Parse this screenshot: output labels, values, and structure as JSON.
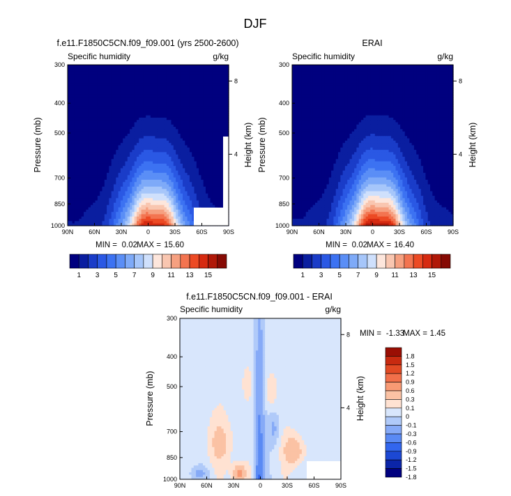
{
  "figure": {
    "title": "DJF"
  },
  "palette": {
    "seq": [
      "#00007f",
      "#0a1ea0",
      "#1a3cc8",
      "#2a58e4",
      "#3c72f2",
      "#5a8ef6",
      "#7eaaf8",
      "#a6c6fa",
      "#cfe0fc",
      "#fde6dc",
      "#f9c6b0",
      "#f6a080",
      "#f37450",
      "#ec4a24",
      "#d62a10",
      "#b01808",
      "#860a04"
    ],
    "div": [
      "#00007f",
      "#0b25a8",
      "#1c48d4",
      "#3266ee",
      "#5a8af4",
      "#86aaf7",
      "#b0caf9",
      "#d8e6fc",
      "#ffe2d2",
      "#fbc2a4",
      "#f89a74",
      "#f2704a",
      "#e24a24",
      "#c82a10",
      "#9a0e04"
    ]
  },
  "chart_data": [
    {
      "type": "heatmap",
      "id": "model",
      "title": "f.e11.F1850C5CN.f09_f09.001 (yrs 2500-2600)",
      "subtitle_left": "Specific humidity",
      "subtitle_right": "g/kg",
      "ylabel": "Pressure (mb)",
      "ylabel_right": "Height (km)",
      "x_ticks": [
        "90N",
        "60N",
        "30N",
        "0",
        "30S",
        "60S",
        "90S"
      ],
      "x_values": [
        90,
        60,
        30,
        0,
        -30,
        -60,
        -90
      ],
      "y_ticks": [
        "300",
        "400",
        "500",
        "700",
        "850",
        "1000"
      ],
      "y_values": [
        300,
        400,
        500,
        700,
        850,
        1000
      ],
      "height_ticks": [
        "8",
        "4"
      ],
      "height_values": [
        8,
        4
      ],
      "min_label": "MIN =",
      "min": "0.02",
      "max_label": "MAX =",
      "max": "15.60",
      "peak": 15.6,
      "colorbar_labels": [
        "1",
        "3",
        "5",
        "7",
        "9",
        "11",
        "13",
        "15"
      ]
    },
    {
      "type": "heatmap",
      "id": "obs",
      "title": "ERAI",
      "subtitle_left": "Specific humidity",
      "subtitle_right": "g/kg",
      "ylabel": "Pressure (mb)",
      "ylabel_right": "Height (km)",
      "x_ticks": [
        "90N",
        "60N",
        "30N",
        "0",
        "30S",
        "60S",
        "90S"
      ],
      "x_values": [
        90,
        60,
        30,
        0,
        -30,
        -60,
        -90
      ],
      "y_ticks": [
        "300",
        "400",
        "500",
        "700",
        "850",
        "1000"
      ],
      "y_values": [
        300,
        400,
        500,
        700,
        850,
        1000
      ],
      "height_ticks": [
        "8",
        "4"
      ],
      "height_values": [
        8,
        4
      ],
      "min_label": "MIN =",
      "min": "0.02",
      "max_label": "MAX =",
      "max": "16.40",
      "peak": 16.4,
      "colorbar_labels": [
        "1",
        "3",
        "5",
        "7",
        "9",
        "11",
        "13",
        "15"
      ]
    },
    {
      "type": "heatmap",
      "id": "diff",
      "title": "f.e11.F1850C5CN.f09_f09.001 - ERAI",
      "subtitle_left": "Specific humidity",
      "subtitle_right": "g/kg",
      "ylabel": "Pressure (mb)",
      "ylabel_right": "Height (km)",
      "x_ticks": [
        "90N",
        "60N",
        "30N",
        "0",
        "30S",
        "60S",
        "90S"
      ],
      "x_values": [
        90,
        60,
        30,
        0,
        -30,
        -60,
        -90
      ],
      "y_ticks": [
        "300",
        "400",
        "500",
        "700",
        "850",
        "1000"
      ],
      "y_values": [
        300,
        400,
        500,
        700,
        850,
        1000
      ],
      "height_ticks": [
        "8",
        "4"
      ],
      "height_values": [
        8,
        4
      ],
      "min_label": "MIN =",
      "min": "-1.33",
      "max_label": "MAX =",
      "max": "1.45",
      "colorbar_labels": [
        "1.8",
        "1.5",
        "1.2",
        "0.9",
        "0.6",
        "0.3",
        "0.1",
        "0",
        "-0.1",
        "-0.3",
        "-0.6",
        "-0.9",
        "-1.2",
        "-1.5",
        "-1.8"
      ]
    }
  ]
}
